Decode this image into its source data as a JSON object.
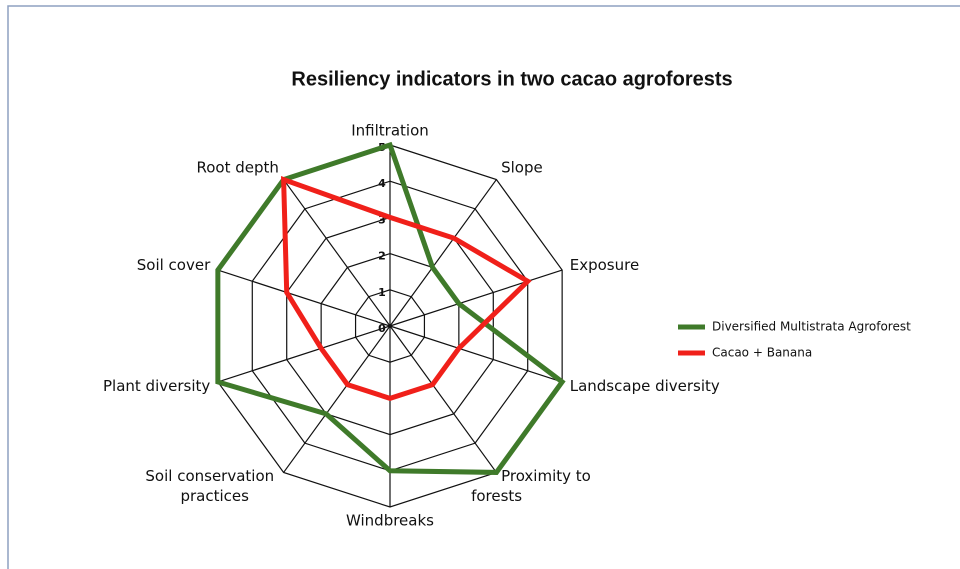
{
  "chart_data": {
    "type": "radar",
    "title": "Resiliency indicators in two cacao agroforests",
    "categories": [
      "Infiltration",
      "Slope",
      "Exposure",
      "Landscape diversity",
      "Proximity to forests",
      "Windbreaks",
      "Soil conservation practices",
      "Plant diversity",
      "Soil cover",
      "Root depth"
    ],
    "series": [
      {
        "name": "Diversified Multistrata Agroforest",
        "color": "#3f7a2a",
        "values": [
          5,
          2,
          2,
          5,
          5,
          4,
          3,
          5,
          5,
          5
        ]
      },
      {
        "name": "Cacao + Banana",
        "color": "#f0201a",
        "values": [
          3,
          3,
          4,
          2,
          2,
          2,
          2,
          2,
          3,
          5
        ]
      }
    ],
    "rlim": [
      0,
      5
    ],
    "rticks": [
      0,
      1,
      2,
      3,
      4,
      5
    ],
    "legend": "right"
  }
}
